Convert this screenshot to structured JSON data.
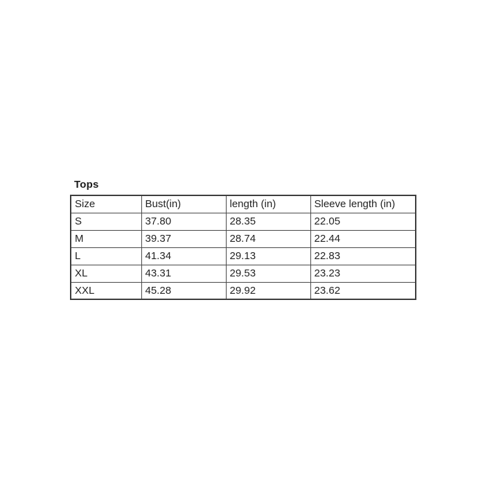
{
  "title": "Tops",
  "table": {
    "columns": [
      "Size",
      "Bust(in)",
      "length (in)",
      "Sleeve length (in)"
    ],
    "rows": [
      [
        "S",
        "37.80",
        "28.35",
        "22.05"
      ],
      [
        "M",
        "39.37",
        "28.74",
        "22.44"
      ],
      [
        "L",
        "41.34",
        "29.13",
        "22.83"
      ],
      [
        "XL",
        "43.31",
        "29.53",
        "23.23"
      ],
      [
        "XXL",
        "45.28",
        "29.92",
        "23.62"
      ]
    ]
  },
  "colors": {
    "background": "#ffffff",
    "border": "#474747",
    "text": "#222222"
  },
  "chart_data": {
    "type": "table",
    "title": "Tops",
    "columns": [
      "Size",
      "Bust(in)",
      "length (in)",
      "Sleeve length (in)"
    ],
    "categories": [
      "S",
      "M",
      "L",
      "XL",
      "XXL"
    ],
    "series": [
      {
        "name": "Bust(in)",
        "values": [
          37.8,
          39.37,
          41.34,
          43.31,
          45.28
        ]
      },
      {
        "name": "length (in)",
        "values": [
          28.35,
          28.74,
          29.13,
          29.53,
          29.92
        ]
      },
      {
        "name": "Sleeve length (in)",
        "values": [
          22.05,
          22.44,
          22.83,
          23.23,
          23.62
        ]
      }
    ]
  }
}
